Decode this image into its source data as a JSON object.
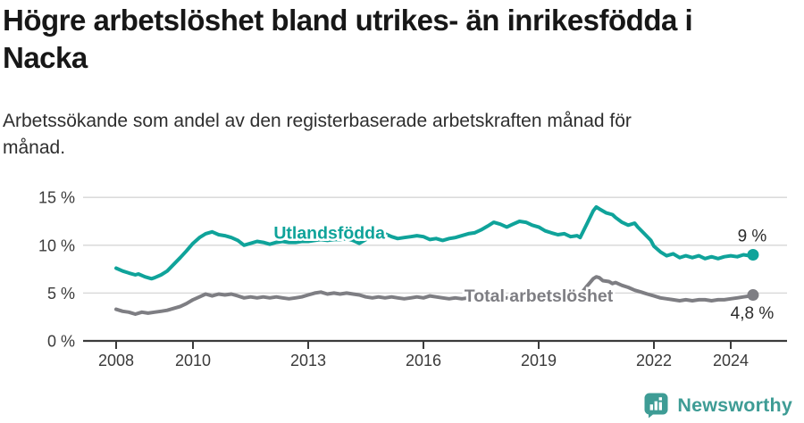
{
  "header": {
    "title_lines": [
      "Högre arbetslöshet bland utrikes- än inrikesfödda i",
      "Nacka"
    ],
    "subtitle_lines": [
      "Arbetssökande som andel av den registerbaserade arbetskraften månad för",
      "månad."
    ]
  },
  "footer": {
    "brand": "Newsworthy",
    "brand_color": "#3e9c95"
  },
  "colors": {
    "series_foreign_born": "#0fa39a",
    "series_total": "#7e7e83",
    "grid": "#d6d6d6",
    "axis": "#3b3b3b",
    "axis_text": "#3a3a3a",
    "end_label_text": "#2b2b2b"
  },
  "chart_data": {
    "type": "line",
    "title": "Högre arbetslöshet bland utrikes- än inrikesfödda i Nacka",
    "subtitle": "Arbetssökande som andel av den registerbaserade arbetskraften månad för månad.",
    "xlabel": "",
    "ylabel": "",
    "ylim": [
      0,
      15
    ],
    "xlim": [
      2008,
      2024.67
    ],
    "grid": "horizontal",
    "legend_position": "inline-labels",
    "yticks": [
      {
        "value": 0,
        "label": "0 %"
      },
      {
        "value": 5,
        "label": "5 %"
      },
      {
        "value": 10,
        "label": "10 %"
      },
      {
        "value": 15,
        "label": "15 %"
      }
    ],
    "xticks": [
      {
        "value": 2008,
        "label": "2008"
      },
      {
        "value": 2010,
        "label": "2010"
      },
      {
        "value": 2013,
        "label": "2013"
      },
      {
        "value": 2016,
        "label": "2016"
      },
      {
        "value": 2019,
        "label": "2019"
      },
      {
        "value": 2022,
        "label": "2022"
      },
      {
        "value": 2024,
        "label": "2024"
      }
    ],
    "series": [
      {
        "name": "Utlandsfödda",
        "color": "#0fa39a",
        "end_label": "9 %",
        "end_label_side": "above",
        "label_anchor": {
          "x": 2013.55,
          "y": 10.7
        },
        "points": [
          [
            2008.0,
            7.6
          ],
          [
            2008.17,
            7.3
          ],
          [
            2008.33,
            7.1
          ],
          [
            2008.5,
            6.9
          ],
          [
            2008.58,
            7.0
          ],
          [
            2008.75,
            6.7
          ],
          [
            2008.92,
            6.5
          ],
          [
            2009.0,
            6.6
          ],
          [
            2009.17,
            6.9
          ],
          [
            2009.33,
            7.3
          ],
          [
            2009.5,
            8.0
          ],
          [
            2009.67,
            8.7
          ],
          [
            2009.83,
            9.4
          ],
          [
            2010.0,
            10.2
          ],
          [
            2010.17,
            10.8
          ],
          [
            2010.33,
            11.2
          ],
          [
            2010.5,
            11.4
          ],
          [
            2010.67,
            11.1
          ],
          [
            2010.83,
            11.0
          ],
          [
            2011.0,
            10.8
          ],
          [
            2011.17,
            10.5
          ],
          [
            2011.33,
            10.0
          ],
          [
            2011.5,
            10.2
          ],
          [
            2011.67,
            10.4
          ],
          [
            2011.83,
            10.3
          ],
          [
            2012.0,
            10.1
          ],
          [
            2012.17,
            10.3
          ],
          [
            2012.33,
            10.4
          ],
          [
            2012.5,
            10.3
          ],
          [
            2012.67,
            10.3
          ],
          [
            2012.83,
            10.4
          ],
          [
            2013.0,
            10.4
          ],
          [
            2013.17,
            10.5
          ],
          [
            2013.33,
            10.6
          ],
          [
            2013.5,
            10.5
          ],
          [
            2013.67,
            10.6
          ],
          [
            2013.83,
            10.6
          ],
          [
            2014.0,
            10.7
          ],
          [
            2014.17,
            10.5
          ],
          [
            2014.33,
            10.2
          ],
          [
            2014.5,
            10.6
          ],
          [
            2014.67,
            10.9
          ],
          [
            2014.83,
            11.1
          ],
          [
            2015.0,
            11.2
          ],
          [
            2015.17,
            10.9
          ],
          [
            2015.33,
            10.7
          ],
          [
            2015.5,
            10.8
          ],
          [
            2015.67,
            10.9
          ],
          [
            2015.83,
            11.0
          ],
          [
            2016.0,
            10.9
          ],
          [
            2016.17,
            10.6
          ],
          [
            2016.33,
            10.7
          ],
          [
            2016.5,
            10.5
          ],
          [
            2016.67,
            10.7
          ],
          [
            2016.83,
            10.8
          ],
          [
            2017.0,
            11.0
          ],
          [
            2017.17,
            11.2
          ],
          [
            2017.33,
            11.3
          ],
          [
            2017.5,
            11.6
          ],
          [
            2017.67,
            12.0
          ],
          [
            2017.83,
            12.4
          ],
          [
            2018.0,
            12.2
          ],
          [
            2018.17,
            11.9
          ],
          [
            2018.33,
            12.2
          ],
          [
            2018.5,
            12.5
          ],
          [
            2018.67,
            12.4
          ],
          [
            2018.83,
            12.1
          ],
          [
            2019.0,
            11.9
          ],
          [
            2019.17,
            11.5
          ],
          [
            2019.33,
            11.3
          ],
          [
            2019.5,
            11.1
          ],
          [
            2019.67,
            11.2
          ],
          [
            2019.83,
            10.9
          ],
          [
            2020.0,
            11.0
          ],
          [
            2020.08,
            10.8
          ],
          [
            2020.25,
            12.2
          ],
          [
            2020.42,
            13.6
          ],
          [
            2020.5,
            14.0
          ],
          [
            2020.58,
            13.8
          ],
          [
            2020.75,
            13.4
          ],
          [
            2020.92,
            13.2
          ],
          [
            2021.0,
            12.9
          ],
          [
            2021.17,
            12.4
          ],
          [
            2021.33,
            12.1
          ],
          [
            2021.5,
            12.3
          ],
          [
            2021.58,
            11.9
          ],
          [
            2021.75,
            11.2
          ],
          [
            2021.92,
            10.5
          ],
          [
            2022.0,
            9.9
          ],
          [
            2022.17,
            9.3
          ],
          [
            2022.33,
            8.9
          ],
          [
            2022.5,
            9.1
          ],
          [
            2022.67,
            8.7
          ],
          [
            2022.83,
            8.9
          ],
          [
            2023.0,
            8.7
          ],
          [
            2023.17,
            8.9
          ],
          [
            2023.33,
            8.6
          ],
          [
            2023.5,
            8.8
          ],
          [
            2023.67,
            8.6
          ],
          [
            2023.83,
            8.8
          ],
          [
            2024.0,
            8.9
          ],
          [
            2024.17,
            8.8
          ],
          [
            2024.33,
            9.0
          ],
          [
            2024.5,
            8.9
          ],
          [
            2024.58,
            9.0
          ]
        ]
      },
      {
        "name": "Total arbetslöshet",
        "color": "#7e7e83",
        "end_label": "4,8 %",
        "end_label_side": "below",
        "label_anchor": {
          "x": 2019.0,
          "y": 4.1
        },
        "points": [
          [
            2008.0,
            3.3
          ],
          [
            2008.17,
            3.1
          ],
          [
            2008.33,
            3.0
          ],
          [
            2008.5,
            2.8
          ],
          [
            2008.67,
            3.0
          ],
          [
            2008.83,
            2.9
          ],
          [
            2009.0,
            3.0
          ],
          [
            2009.17,
            3.1
          ],
          [
            2009.33,
            3.2
          ],
          [
            2009.5,
            3.4
          ],
          [
            2009.67,
            3.6
          ],
          [
            2009.83,
            3.9
          ],
          [
            2010.0,
            4.3
          ],
          [
            2010.17,
            4.6
          ],
          [
            2010.33,
            4.9
          ],
          [
            2010.5,
            4.7
          ],
          [
            2010.67,
            4.9
          ],
          [
            2010.83,
            4.8
          ],
          [
            2011.0,
            4.9
          ],
          [
            2011.17,
            4.7
          ],
          [
            2011.33,
            4.5
          ],
          [
            2011.5,
            4.6
          ],
          [
            2011.67,
            4.5
          ],
          [
            2011.83,
            4.6
          ],
          [
            2012.0,
            4.5
          ],
          [
            2012.17,
            4.6
          ],
          [
            2012.33,
            4.5
          ],
          [
            2012.5,
            4.4
          ],
          [
            2012.67,
            4.5
          ],
          [
            2012.83,
            4.6
          ],
          [
            2013.0,
            4.8
          ],
          [
            2013.17,
            5.0
          ],
          [
            2013.33,
            5.1
          ],
          [
            2013.5,
            4.9
          ],
          [
            2013.67,
            5.0
          ],
          [
            2013.83,
            4.9
          ],
          [
            2014.0,
            5.0
          ],
          [
            2014.17,
            4.9
          ],
          [
            2014.33,
            4.8
          ],
          [
            2014.5,
            4.6
          ],
          [
            2014.67,
            4.5
          ],
          [
            2014.83,
            4.6
          ],
          [
            2015.0,
            4.5
          ],
          [
            2015.17,
            4.6
          ],
          [
            2015.33,
            4.5
          ],
          [
            2015.5,
            4.4
          ],
          [
            2015.67,
            4.5
          ],
          [
            2015.83,
            4.6
          ],
          [
            2016.0,
            4.5
          ],
          [
            2016.17,
            4.7
          ],
          [
            2016.33,
            4.6
          ],
          [
            2016.5,
            4.5
          ],
          [
            2016.67,
            4.4
          ],
          [
            2016.83,
            4.5
          ],
          [
            2017.0,
            4.4
          ],
          [
            2017.17,
            4.5
          ],
          [
            2017.33,
            4.4
          ],
          [
            2017.5,
            4.5
          ],
          [
            2017.67,
            4.4
          ],
          [
            2017.83,
            4.5
          ],
          [
            2018.0,
            4.4
          ],
          [
            2018.17,
            4.5
          ],
          [
            2018.33,
            4.6
          ],
          [
            2018.5,
            4.5
          ],
          [
            2018.67,
            4.4
          ],
          [
            2018.83,
            4.5
          ],
          [
            2019.0,
            4.4
          ],
          [
            2019.17,
            4.5
          ],
          [
            2019.33,
            4.4
          ],
          [
            2019.5,
            4.5
          ],
          [
            2019.67,
            4.4
          ],
          [
            2019.83,
            4.5
          ],
          [
            2020.0,
            4.6
          ],
          [
            2020.08,
            4.8
          ],
          [
            2020.25,
            5.7
          ],
          [
            2020.42,
            6.5
          ],
          [
            2020.5,
            6.7
          ],
          [
            2020.58,
            6.6
          ],
          [
            2020.67,
            6.3
          ],
          [
            2020.83,
            6.2
          ],
          [
            2020.92,
            6.0
          ],
          [
            2021.0,
            6.1
          ],
          [
            2021.17,
            5.8
          ],
          [
            2021.33,
            5.6
          ],
          [
            2021.5,
            5.3
          ],
          [
            2021.67,
            5.1
          ],
          [
            2021.83,
            4.9
          ],
          [
            2022.0,
            4.7
          ],
          [
            2022.17,
            4.5
          ],
          [
            2022.33,
            4.4
          ],
          [
            2022.5,
            4.3
          ],
          [
            2022.67,
            4.2
          ],
          [
            2022.83,
            4.3
          ],
          [
            2023.0,
            4.2
          ],
          [
            2023.17,
            4.3
          ],
          [
            2023.33,
            4.3
          ],
          [
            2023.5,
            4.2
          ],
          [
            2023.67,
            4.3
          ],
          [
            2023.83,
            4.3
          ],
          [
            2024.0,
            4.4
          ],
          [
            2024.17,
            4.5
          ],
          [
            2024.33,
            4.6
          ],
          [
            2024.5,
            4.7
          ],
          [
            2024.58,
            4.8
          ]
        ]
      }
    ]
  }
}
